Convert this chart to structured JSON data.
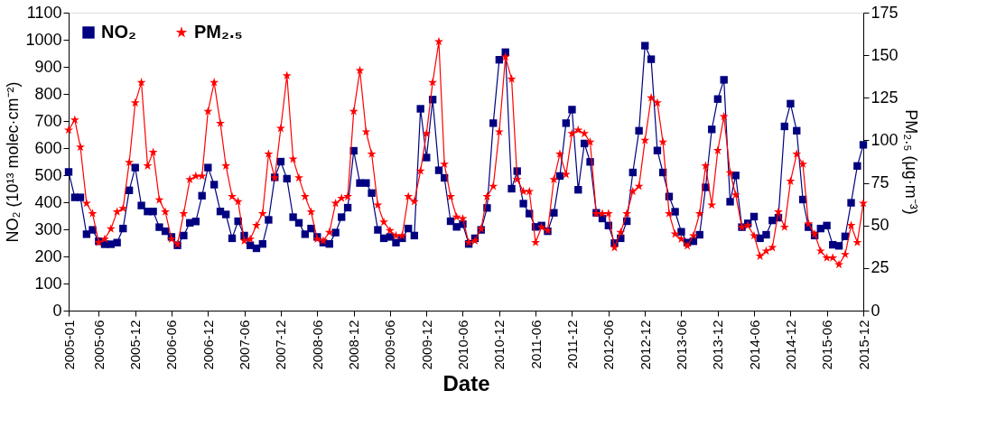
{
  "chart_data": {
    "type": "line",
    "xlabel": "Date",
    "ylabel": "NO₂ (10¹³ molec·cm⁻²)",
    "y2label": "PM₂.₅ (μg·m⁻³)",
    "x": [
      "2005-01",
      "2005-02",
      "2005-03",
      "2005-04",
      "2005-05",
      "2005-06",
      "2005-07",
      "2005-08",
      "2005-09",
      "2005-10",
      "2005-11",
      "2005-12",
      "2006-01",
      "2006-02",
      "2006-03",
      "2006-04",
      "2006-05",
      "2006-06",
      "2006-07",
      "2006-08",
      "2006-09",
      "2006-10",
      "2006-11",
      "2006-12",
      "2007-01",
      "2007-02",
      "2007-03",
      "2007-04",
      "2007-05",
      "2007-06",
      "2007-07",
      "2007-08",
      "2007-09",
      "2007-10",
      "2007-11",
      "2007-12",
      "2008-01",
      "2008-02",
      "2008-03",
      "2008-04",
      "2008-05",
      "2008-06",
      "2008-07",
      "2008-08",
      "2008-09",
      "2008-10",
      "2008-11",
      "2008-12",
      "2009-01",
      "2009-02",
      "2009-03",
      "2009-04",
      "2009-05",
      "2009-06",
      "2009-07",
      "2009-08",
      "2009-09",
      "2009-10",
      "2009-11",
      "2009-12",
      "2010-01",
      "2010-02",
      "2010-03",
      "2010-04",
      "2010-05",
      "2010-06",
      "2010-07",
      "2010-08",
      "2010-09",
      "2010-10",
      "2010-11",
      "2010-12",
      "2011-01",
      "2011-02",
      "2011-03",
      "2011-04",
      "2011-05",
      "2011-06",
      "2011-07",
      "2011-08",
      "2011-09",
      "2011-10",
      "2011-11",
      "2011-12",
      "2012-01",
      "2012-02",
      "2012-03",
      "2012-04",
      "2012-05",
      "2012-06",
      "2012-07",
      "2012-08",
      "2012-09",
      "2012-10",
      "2012-11",
      "2012-12",
      "2013-01",
      "2013-02",
      "2013-03",
      "2013-04",
      "2013-05",
      "2013-06",
      "2013-07",
      "2013-08",
      "2013-09",
      "2013-10",
      "2013-11",
      "2013-12",
      "2014-01",
      "2014-02",
      "2014-03",
      "2014-04",
      "2014-05",
      "2014-06",
      "2014-07",
      "2014-08",
      "2014-09",
      "2014-10",
      "2014-11",
      "2014-12",
      "2015-01",
      "2015-02",
      "2015-03",
      "2015-04",
      "2015-05",
      "2015-06",
      "2015-07",
      "2015-08",
      "2015-09",
      "2015-10",
      "2015-11",
      "2015-12"
    ],
    "series": [
      {
        "name": "NO₂",
        "color": "#000080",
        "marker": "square",
        "values": [
          512,
          418,
          418,
          282,
          298,
          256,
          245,
          245,
          251,
          303,
          444,
          528,
          388,
          366,
          366,
          308,
          293,
          272,
          241,
          277,
          324,
          329,
          424,
          528,
          465,
          366,
          355,
          267,
          330,
          277,
          241,
          230,
          246,
          335,
          492,
          550,
          487,
          345,
          324,
          282,
          303,
          272,
          251,
          246,
          288,
          345,
          380,
          590,
          471,
          471,
          434,
          298,
          267,
          272,
          251,
          267,
          303,
          277,
          745,
          565,
          779,
          518,
          490,
          330,
          309,
          319,
          246,
          267,
          298,
          379,
          692,
          926,
          954,
          450,
          515,
          395,
          358,
          309,
          314,
          293,
          361,
          497,
          692,
          742,
          446,
          617,
          549,
          361,
          340,
          314,
          249,
          267,
          330,
          510,
          664,
          978,
          928,
          591,
          510,
          421,
          365,
          291,
          251,
          256,
          280,
          455,
          669,
          781,
          852,
          402,
          499,
          308,
          322,
          347,
          267,
          280,
          333,
          343,
          680,
          764,
          664,
          410,
          308,
          277,
          303,
          314,
          243,
          239,
          274,
          398,
          534,
          612
        ]
      },
      {
        "name": "PM₂.₅",
        "color": "#ff0000",
        "marker": "star",
        "axis": "y2",
        "values": [
          106,
          112,
          96,
          63,
          57,
          40,
          42,
          48,
          58,
          60,
          87,
          122,
          134,
          85,
          93,
          65,
          58,
          42,
          39,
          57,
          77,
          79,
          79,
          117,
          134,
          110,
          85,
          67,
          64,
          41,
          42,
          50,
          57,
          92,
          78,
          107,
          138,
          89,
          78,
          67,
          58,
          42,
          41,
          46,
          63,
          66,
          67,
          117,
          141,
          105,
          92,
          62,
          52,
          47,
          44,
          44,
          67,
          64,
          82,
          104,
          134,
          158,
          86,
          67,
          55,
          54,
          40,
          41,
          48,
          67,
          73,
          105,
          149,
          136,
          77,
          70,
          70,
          40,
          49,
          47,
          77,
          92,
          80,
          104,
          106,
          104,
          99,
          57,
          57,
          57,
          37,
          46,
          57,
          70,
          73,
          100,
          125,
          122,
          99,
          57,
          45,
          42,
          38,
          44,
          57,
          85,
          62,
          94,
          114,
          81,
          68,
          49,
          50,
          44,
          32,
          35,
          37,
          58,
          49,
          76,
          92,
          86,
          51,
          45,
          35,
          31,
          31,
          27,
          33,
          50,
          40,
          63
        ]
      }
    ],
    "xlim": [
      "2005-01",
      "2015-12"
    ],
    "xticks": [
      "2005-01",
      "2005-06",
      "2005-12",
      "2006-06",
      "2006-12",
      "2007-06",
      "2007-12",
      "2008-06",
      "2008-12",
      "2009-06",
      "2009-12",
      "2010-06",
      "2010-12",
      "2011-06",
      "2011-12",
      "2012-06",
      "2012-12",
      "2013-06",
      "2013-12",
      "2014-06",
      "2014-12",
      "2015-06",
      "2015-12"
    ],
    "ylim": [
      0,
      1100
    ],
    "yticks": [
      0,
      100,
      200,
      300,
      400,
      500,
      600,
      700,
      800,
      900,
      1000,
      1100
    ],
    "y2lim": [
      0,
      175
    ],
    "y2ticks": [
      0,
      25,
      50,
      75,
      100,
      125,
      150,
      175
    ],
    "line_style": "solid",
    "legend": "top left",
    "grid": false
  }
}
